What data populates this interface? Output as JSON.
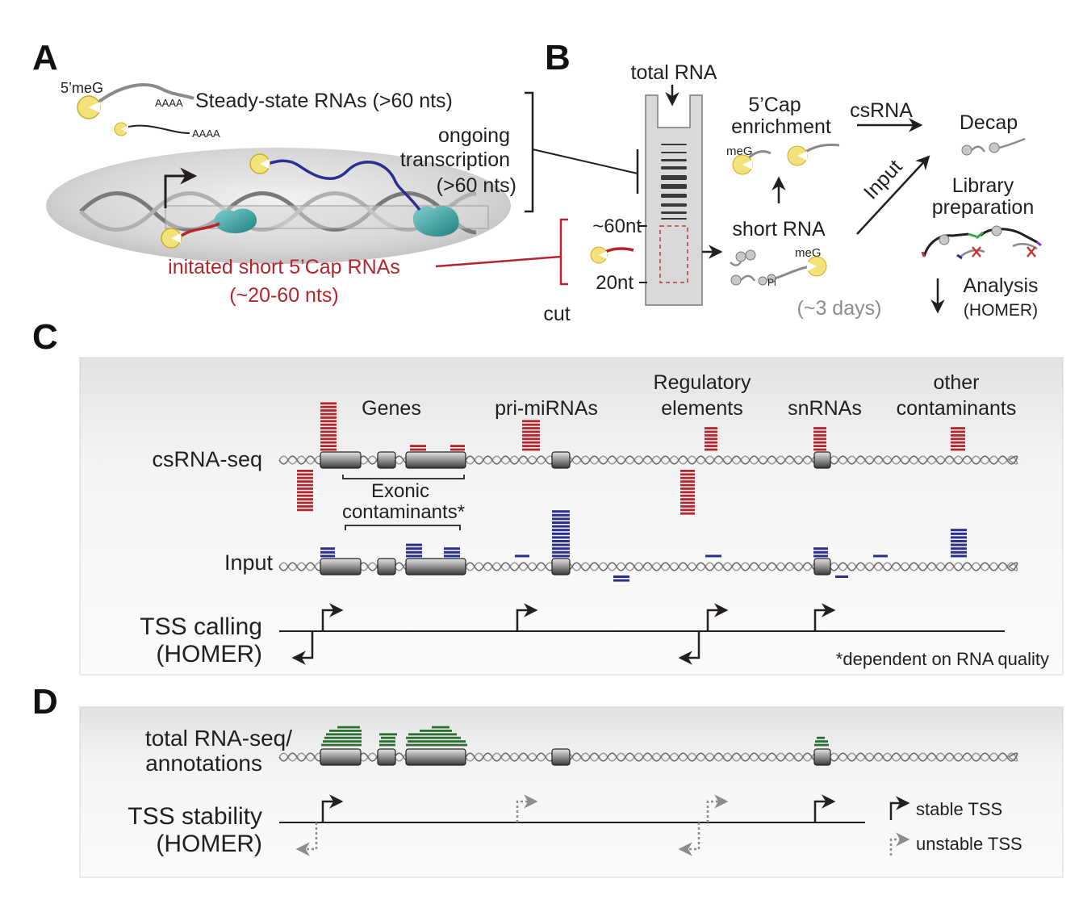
{
  "panels": {
    "a": "A",
    "b": "B",
    "c": "C",
    "d": "D"
  },
  "colors": {
    "red": "#b5252d",
    "blue": "#2b2f8f",
    "green": "#2e6e35",
    "yellow": "#f3e27a",
    "teal": "#2f9a9a",
    "gray": "#8c8c8c"
  },
  "panel_a": {
    "cap_label": "5’meG",
    "polyA_1": "AAAA",
    "polyA_2": "AAAA",
    "steady_state": "Steady-state RNAs (>60 nts)",
    "ongoing_1": "ongoing",
    "ongoing_2": "transcription",
    "ongoing_3": "(>60 nts)",
    "initiated_1": "initated short 5’Cap RNAs",
    "initiated_2": "(~20-60 nts)"
  },
  "panel_b": {
    "total_rna": "total RNA",
    "marker_60": "~60nt",
    "marker_20": "20nt",
    "cut": "cut",
    "cap_enrich_1": "5’Cap",
    "cap_enrich_2": "enrichment",
    "meg_1": "meG",
    "short_rna": "short RNA",
    "meg_2": "meG",
    "pi": "Pi",
    "days": "(~3 days)",
    "csrna": "csRNA",
    "input": "Input",
    "decap": "Decap",
    "library_1": "Library",
    "library_2": "preparation",
    "analysis_1": "Analysis",
    "analysis_2": "(HOMER)"
  },
  "panel_c": {
    "genes": "Genes",
    "pri_mirnas": "pri-miRNAs",
    "regulatory_1": "Regulatory",
    "regulatory_2": "elements",
    "snrnas": "snRNAs",
    "other_1": "other",
    "other_2": "contaminants",
    "csrna_seq": "csRNA-seq",
    "exonic_1": "Exonic",
    "exonic_2": "contaminants*",
    "input": "Input",
    "tss_calling_1": "TSS calling",
    "tss_calling_2": "(HOMER)",
    "footnote": "*dependent on RNA quality"
  },
  "panel_d": {
    "total_rna_1": "total RNA-seq/",
    "total_rna_2": "annotations",
    "tss_stability_1": "TSS stability",
    "tss_stability_2": "(HOMER)",
    "stable": "stable TSS",
    "unstable": "unstable TSS"
  }
}
